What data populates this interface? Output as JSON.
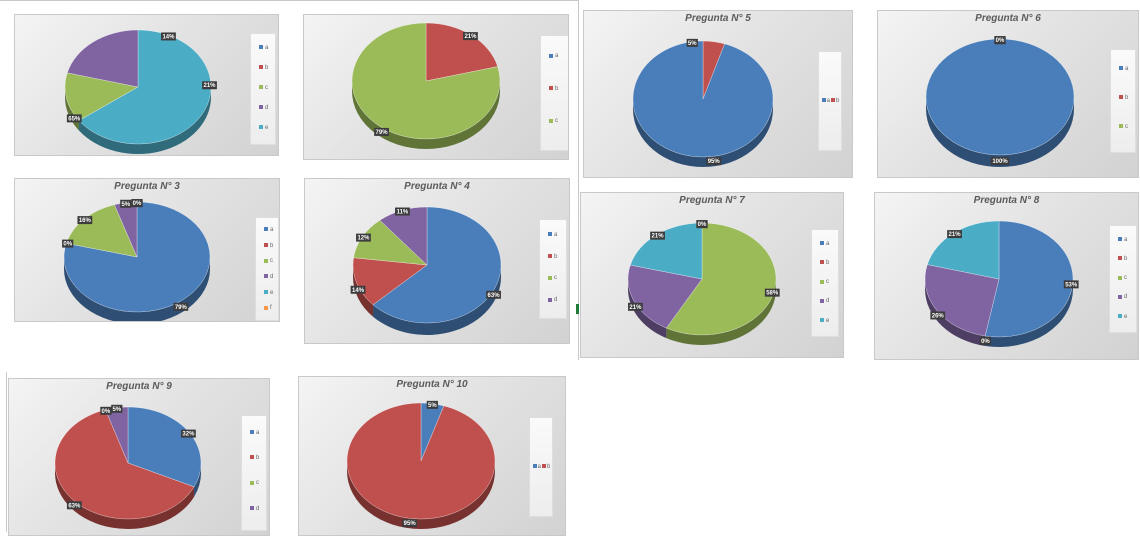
{
  "colors": {
    "a": "#4a7ebb",
    "b": "#c0504d",
    "c": "#9bbb59",
    "d": "#8064a2",
    "e": "#4bacc6",
    "f": "#f79646"
  },
  "chart_data": [
    {
      "type": "pie",
      "title": "",
      "slices": [
        {
          "label": "a",
          "value": 0
        },
        {
          "label": "b",
          "value": 0
        },
        {
          "label": "c",
          "value": 14
        },
        {
          "label": "d",
          "value": 21
        },
        {
          "label": "e",
          "value": 65
        }
      ],
      "data_labels": [
        "14%",
        "21%",
        "65%"
      ],
      "legend": [
        "a",
        "b",
        "c",
        "d",
        "e"
      ]
    },
    {
      "type": "pie",
      "title": "",
      "slices": [
        {
          "label": "a",
          "value": 0
        },
        {
          "label": "b",
          "value": 21
        },
        {
          "label": "c",
          "value": 79
        }
      ],
      "data_labels": [
        "21%",
        "79%"
      ],
      "legend": [
        "a",
        "b",
        "c"
      ]
    },
    {
      "type": "pie",
      "title": "Pregunta N° 3",
      "slices": [
        {
          "label": "a",
          "value": 79
        },
        {
          "label": "b",
          "value": 0
        },
        {
          "label": "c",
          "value": 16
        },
        {
          "label": "d",
          "value": 5
        },
        {
          "label": "e",
          "value": 0
        },
        {
          "label": "f",
          "value": 0
        }
      ],
      "data_labels": [
        "79%",
        "0%",
        "16%",
        "5%",
        "0%",
        "0%"
      ],
      "legend": [
        "a",
        "b",
        "c",
        "d",
        "e",
        "f"
      ]
    },
    {
      "type": "pie",
      "title": "Pregunta N° 4",
      "slices": [
        {
          "label": "a",
          "value": 63
        },
        {
          "label": "b",
          "value": 14
        },
        {
          "label": "c",
          "value": 12
        },
        {
          "label": "d",
          "value": 11
        }
      ],
      "data_labels": [
        "63%",
        "14%",
        "12%",
        "11%"
      ],
      "legend": [
        "a",
        "b",
        "c",
        "d"
      ]
    },
    {
      "type": "pie",
      "title": "Pregunta N° 5",
      "slices": [
        {
          "label": "a",
          "value": 95
        },
        {
          "label": "b",
          "value": 5
        }
      ],
      "data_labels": [
        "95%",
        "5%"
      ],
      "legend": [
        "a",
        "b"
      ]
    },
    {
      "type": "pie",
      "title": "Pregunta N° 6",
      "slices": [
        {
          "label": "a",
          "value": 100
        },
        {
          "label": "b",
          "value": 0
        },
        {
          "label": "c",
          "value": 0
        }
      ],
      "data_labels": [
        "100%",
        "0%",
        "0%"
      ],
      "legend": [
        "a",
        "b",
        "c"
      ]
    },
    {
      "type": "pie",
      "title": "Pregunta N° 7",
      "slices": [
        {
          "label": "a",
          "value": 0
        },
        {
          "label": "b",
          "value": 0
        },
        {
          "label": "c",
          "value": 58
        },
        {
          "label": "d",
          "value": 21
        },
        {
          "label": "e",
          "value": 21
        }
      ],
      "data_labels": [
        "0%",
        "0%",
        "58%",
        "21%",
        "21%"
      ],
      "legend": [
        "a",
        "b",
        "c",
        "d",
        "e"
      ]
    },
    {
      "type": "pie",
      "title": "Pregunta N° 8",
      "slices": [
        {
          "label": "a",
          "value": 53
        },
        {
          "label": "b",
          "value": 0
        },
        {
          "label": "c",
          "value": 0
        },
        {
          "label": "d",
          "value": 26
        },
        {
          "label": "e",
          "value": 21
        }
      ],
      "data_labels": [
        "53%",
        "0%",
        "0%",
        "26%",
        "21%"
      ],
      "legend": [
        "a",
        "b",
        "c",
        "d",
        "e"
      ]
    },
    {
      "type": "pie",
      "title": "Pregunta N° 9",
      "slices": [
        {
          "label": "a",
          "value": 32
        },
        {
          "label": "b",
          "value": 63
        },
        {
          "label": "c",
          "value": 0
        },
        {
          "label": "d",
          "value": 5
        }
      ],
      "data_labels": [
        "32%",
        "63%",
        "0%",
        "5%"
      ],
      "legend": [
        "a",
        "b",
        "c",
        "d"
      ]
    },
    {
      "type": "pie",
      "title": "Pregunta N° 10",
      "slices": [
        {
          "label": "a",
          "value": 5
        },
        {
          "label": "b",
          "value": 95
        }
      ],
      "data_labels": [
        "5%",
        "95%"
      ],
      "legend": [
        "a",
        "b"
      ]
    }
  ]
}
